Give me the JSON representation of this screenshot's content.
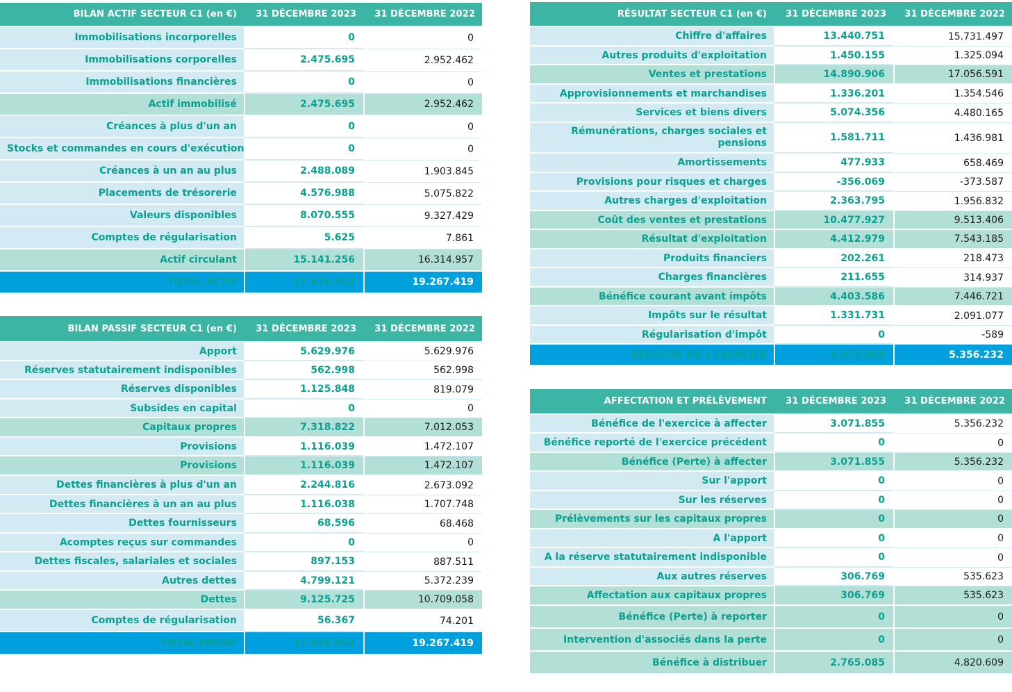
{
  "actif": {
    "header": [
      "BILAN ACTIF  SECTEUR C1 (en €)",
      "31 DÉCEMBRE 2023",
      "31 DÉCEMBRE 2022"
    ],
    "rows": [
      {
        "label": "Immobilisations incorporelles",
        "v2023": "0",
        "v2022": "0",
        "kind": "normal"
      },
      {
        "label": "Immobilisations corporelles",
        "v2023": "2.475.695",
        "v2022": "2.952.462",
        "kind": "normal"
      },
      {
        "label": "Immobilisations financières",
        "v2023": "0",
        "v2022": "0",
        "kind": "normal"
      },
      {
        "label": "Actif immobilisé",
        "v2023": "2.475.695",
        "v2022": "2.952.462",
        "kind": "sub"
      },
      {
        "label": "Créances à plus d'un an",
        "v2023": "0",
        "v2022": "0",
        "kind": "normal"
      },
      {
        "label": "Stocks et commandes en cours d'exécution",
        "v2023": "0",
        "v2022": "0",
        "kind": "normal"
      },
      {
        "label": "Créances à un an au plus",
        "v2023": "2.488.089",
        "v2022": "1.903.845",
        "kind": "normal"
      },
      {
        "label": "Placements de trésorerie",
        "v2023": "4.576.988",
        "v2022": "5.075.822",
        "kind": "normal"
      },
      {
        "label": "Valeurs disponibles",
        "v2023": "8.070.555",
        "v2022": "9.327.429",
        "kind": "normal"
      },
      {
        "label": "Comptes de régularisation",
        "v2023": "5.625",
        "v2022": "7.861",
        "kind": "normal"
      },
      {
        "label": "Actif circulant",
        "v2023": "15.141.256",
        "v2022": "16.314.957",
        "kind": "sub"
      },
      {
        "label": "TOTAL ACTIF",
        "v2023": "17.616.952",
        "v2022": "19.267.419",
        "kind": "total"
      }
    ]
  },
  "passif": {
    "header": [
      "BILAN PASSIF  SECTEUR C1 (en €)",
      "31 DÉCEMBRE 2023",
      "31 DÉCEMBRE 2022"
    ],
    "rows": [
      {
        "label": "Apport",
        "v2023": "5.629.976",
        "v2022": "5.629.976",
        "kind": "normal"
      },
      {
        "label": "Réserves statutairement indisponibles",
        "v2023": "562.998",
        "v2022": "562.998",
        "kind": "normal"
      },
      {
        "label": "Réserves disponibles",
        "v2023": "1.125.848",
        "v2022": "819.079",
        "kind": "normal"
      },
      {
        "label": "Subsides en capital",
        "v2023": "0",
        "v2022": "0",
        "kind": "normal"
      },
      {
        "label": "Capitaux propres",
        "v2023": "7.318.822",
        "v2022": "7.012.053",
        "kind": "sub"
      },
      {
        "label": "Provisions",
        "v2023": "1.116.039",
        "v2022": "1.472.107",
        "kind": "normal"
      },
      {
        "label": "Provisions",
        "v2023": "1.116.039",
        "v2022": "1.472.107",
        "kind": "sub"
      },
      {
        "label": "Dettes financières à plus d'un an",
        "v2023": "2.244.816",
        "v2022": "2.673.092",
        "kind": "normal"
      },
      {
        "label": "Dettes financières à un an au plus",
        "v2023": "1.116.038",
        "v2022": "1.707.748",
        "kind": "normal"
      },
      {
        "label": "Dettes fournisseurs",
        "v2023": "68.596",
        "v2022": "68.468",
        "kind": "normal"
      },
      {
        "label": "Acomptes reçus sur commandes",
        "v2023": "0",
        "v2022": "0",
        "kind": "normal"
      },
      {
        "label": "Dettes fiscales, salariales et sociales",
        "v2023": "897.153",
        "v2022": "887.511",
        "kind": "normal"
      },
      {
        "label": "Autres dettes",
        "v2023": "4.799.121",
        "v2022": "5.372.239",
        "kind": "normal"
      },
      {
        "label": "Dettes",
        "v2023": "9.125.725",
        "v2022": "10.709.058",
        "kind": "sub"
      },
      {
        "label": "Comptes de régularisation",
        "v2023": "56.367",
        "v2022": "74.201",
        "kind": "normal"
      },
      {
        "label": "TOTAL PASSIF",
        "v2023": "17.616.952",
        "v2022": "19.267.419",
        "kind": "total"
      }
    ]
  },
  "resultat": {
    "header": [
      "RÉSULTAT SECTEUR C1 (en €)",
      "31 DÉCEMBRE 2023",
      "31 DÉCEMBRE 2022"
    ],
    "rows": [
      {
        "label": "Chiffre d'affaires",
        "v2023": "13.440.751",
        "v2022": "15.731.497",
        "kind": "normal"
      },
      {
        "label": "Autres produits d'exploitation",
        "v2023": "1.450.155",
        "v2022": "1.325.094",
        "kind": "normal"
      },
      {
        "label": "Ventes et prestations",
        "v2023": "14.890.906",
        "v2022": "17.056.591",
        "kind": "sub"
      },
      {
        "label": "Approvisionnements et marchandises",
        "v2023": "1.336.201",
        "v2022": "1.354.546",
        "kind": "normal"
      },
      {
        "label": "Services et biens divers",
        "v2023": "5.074.356",
        "v2022": "4.480.165",
        "kind": "normal"
      },
      {
        "label": "Rémunérations, charges sociales et pensions",
        "v2023": "1.581.711",
        "v2022": "1.436.981",
        "kind": "normal"
      },
      {
        "label": "Amortissements",
        "v2023": "477.933",
        "v2022": "658.469",
        "kind": "normal"
      },
      {
        "label": "Provisions pour risques et charges",
        "v2023": "-356.069",
        "v2022": "-373.587",
        "kind": "normal"
      },
      {
        "label": "Autres charges d'exploitation",
        "v2023": "2.363.795",
        "v2022": "1.956.832",
        "kind": "normal"
      },
      {
        "label": "Coût des ventes et prestations",
        "v2023": "10.477.927",
        "v2022": "9.513.406",
        "kind": "sub"
      },
      {
        "label": "Résultat d'exploitation",
        "v2023": "4.412.979",
        "v2022": "7.543.185",
        "kind": "sub"
      },
      {
        "label": "Produits financiers",
        "v2023": "202.261",
        "v2022": "218.473",
        "kind": "normal"
      },
      {
        "label": "Charges financières",
        "v2023": "211.655",
        "v2022": "314.937",
        "kind": "normal"
      },
      {
        "label": "Bénéfice courant avant impôts",
        "v2023": "4.403.586",
        "v2022": "7.446.721",
        "kind": "sub"
      },
      {
        "label": "Impôts sur le résultat",
        "v2023": "1.331.731",
        "v2022": "2.091.077",
        "kind": "normal"
      },
      {
        "label": "Régularisation d'impôt",
        "v2023": "0",
        "v2022": "-589",
        "kind": "normal"
      },
      {
        "label": "RÉSULTAT DE L'EXERCICE",
        "v2023": "3.071.855",
        "v2022": "5.356.232",
        "kind": "total"
      }
    ]
  },
  "affectation": {
    "header": [
      "AFFECTATION ET PRÉLÈVEMENT",
      "31 DÉCEMBRE 2023",
      "31 DÉCEMBRE 2022"
    ],
    "rows": [
      {
        "label": "Bénéfice de l'exercice à affecter",
        "v2023": "3.071.855",
        "v2022": "5.356.232",
        "kind": "normal"
      },
      {
        "label": "Bénéfice reporté de l'exercice précédent",
        "v2023": "0",
        "v2022": "0",
        "kind": "normal"
      },
      {
        "label": "Bénéfice (Perte) à affecter",
        "v2023": "3.071.855",
        "v2022": "5.356.232",
        "kind": "sub"
      },
      {
        "label": "Sur l'apport",
        "v2023": "0",
        "v2022": "0",
        "kind": "normal"
      },
      {
        "label": "Sur les réserves",
        "v2023": "0",
        "v2022": "0",
        "kind": "normal"
      },
      {
        "label": "Prélèvements sur les capitaux propres",
        "v2023": "0",
        "v2022": "0",
        "kind": "sub"
      },
      {
        "label": "A l'apport",
        "v2023": "0",
        "v2022": "0",
        "kind": "normal"
      },
      {
        "label": "A la réserve statutairement indisponible",
        "v2023": "0",
        "v2022": "0",
        "kind": "normal"
      },
      {
        "label": "Aux autres réserves",
        "v2023": "306.769",
        "v2022": "535.623",
        "kind": "normal"
      },
      {
        "label": "Affectation aux capitaux propres",
        "v2023": "306.769",
        "v2022": "535.623",
        "kind": "sub"
      },
      {
        "label": "Bénéfice (Perte) à reporter",
        "v2023": "0",
        "v2022": "0",
        "kind": "sub"
      },
      {
        "label": "Intervention d'associés dans la perte",
        "v2023": "0",
        "v2022": "0",
        "kind": "sub"
      },
      {
        "label": "Bénéfice à distribuer",
        "v2023": "2.765.085",
        "v2022": "4.820.609",
        "kind": "sub"
      }
    ]
  }
}
